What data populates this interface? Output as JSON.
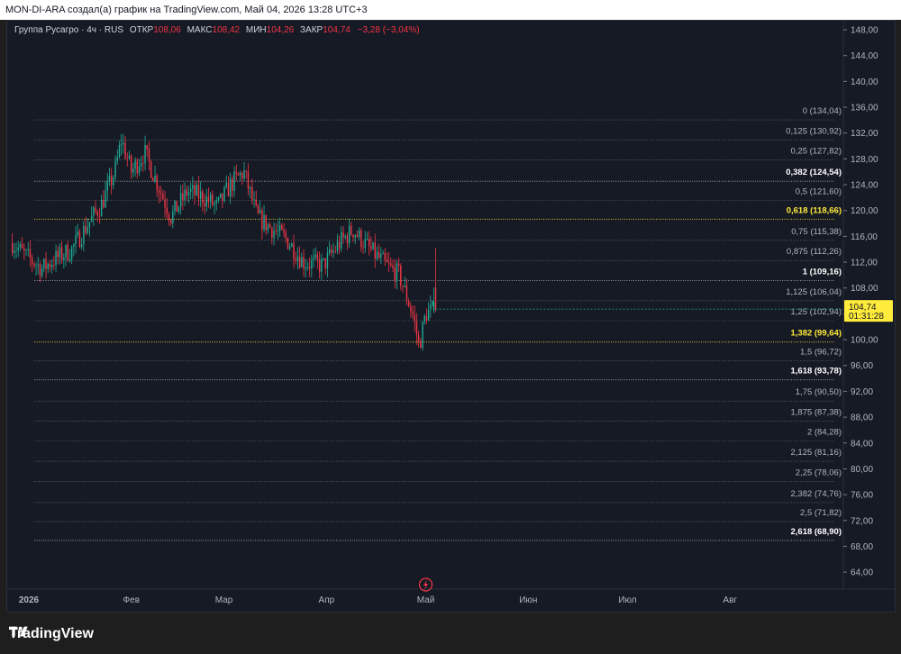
{
  "caption": "MON-DI-ARA создал(а) график на TradingView.com, Май 04, 2026 13:28 UTC+3",
  "legend": {
    "symbol": "Группа Русагро · 4ч · RUS",
    "open_label": "ОТКР",
    "open": "108,06",
    "high_label": "МАКС",
    "high": "108,42",
    "low_label": "МИН",
    "low": "104,26",
    "close_label": "ЗАКР",
    "close": "104,74",
    "change": "−3,28 (−3,04%)"
  },
  "price_badge": {
    "price": "104,74",
    "countdown": "01:31:28"
  },
  "brand": "TradingView",
  "icons": {
    "logo": "tradingview-logo-icon",
    "marker": "lightning-icon"
  },
  "colors": {
    "up": "#22ab94",
    "down": "#f23645",
    "accent": "#ffeb3b",
    "background": "#161a25",
    "fib_line": "#b2b5be"
  },
  "chart_data": {
    "type": "candlestick",
    "y_ticks": [
      "64,00",
      "68,00",
      "72,00",
      "76,00",
      "80,00",
      "84,00",
      "88,00",
      "92,00",
      "96,00",
      "100,00",
      "104,00",
      "108,00",
      "112,00",
      "116,00",
      "120,00",
      "124,00",
      "128,00",
      "132,00",
      "136,00",
      "140,00",
      "144,00",
      "148,00"
    ],
    "x_ticks": [
      "2026",
      "Фев",
      "Мар",
      "Апр",
      "Май",
      "Июн",
      "Июл",
      "Авг"
    ],
    "ylim": [
      62.2,
      149.4
    ],
    "fib_levels": [
      {
        "label": "0 (134,04)",
        "value": 134.04,
        "highlight": false,
        "bold": false
      },
      {
        "label": "0,125 (130,92)",
        "value": 130.92,
        "highlight": false,
        "bold": false
      },
      {
        "label": "0,25 (127,82)",
        "value": 127.82,
        "highlight": false,
        "bold": false
      },
      {
        "label": "0,382 (124,54)",
        "value": 124.54,
        "highlight": false,
        "bold": true
      },
      {
        "label": "0,5 (121,60)",
        "value": 121.6,
        "highlight": false,
        "bold": false
      },
      {
        "label": "0,618 (118,66)",
        "value": 118.66,
        "highlight": true,
        "bold": true
      },
      {
        "label": "0,75 (115,38)",
        "value": 115.38,
        "highlight": false,
        "bold": false
      },
      {
        "label": "0,875 (112,26)",
        "value": 112.26,
        "highlight": false,
        "bold": false
      },
      {
        "label": "1 (109,16)",
        "value": 109.16,
        "highlight": false,
        "bold": true
      },
      {
        "label": "1,125 (106,04)",
        "value": 106.04,
        "highlight": false,
        "bold": false
      },
      {
        "label": "1,25 (102,94)",
        "value": 102.94,
        "highlight": false,
        "bold": false
      },
      {
        "label": "1,382 (99,64)",
        "value": 99.64,
        "highlight": true,
        "bold": true
      },
      {
        "label": "1,5 (96,72)",
        "value": 96.72,
        "highlight": false,
        "bold": false
      },
      {
        "label": "1,618 (93,78)",
        "value": 93.78,
        "highlight": false,
        "bold": true
      },
      {
        "label": "1,75 (90,50)",
        "value": 90.5,
        "highlight": false,
        "bold": false
      },
      {
        "label": "1,875 (87,38)",
        "value": 87.38,
        "highlight": false,
        "bold": false
      },
      {
        "label": "2 (84,28)",
        "value": 84.28,
        "highlight": false,
        "bold": false
      },
      {
        "label": "2,125 (81,16)",
        "value": 81.16,
        "highlight": false,
        "bold": false
      },
      {
        "label": "2,25 (78,06)",
        "value": 78.06,
        "highlight": false,
        "bold": false
      },
      {
        "label": "2,382 (74,76)",
        "value": 74.76,
        "highlight": false,
        "bold": false
      },
      {
        "label": "2,5 (71,82)",
        "value": 71.82,
        "highlight": false,
        "bold": false
      },
      {
        "label": "2,618 (68,90)",
        "value": 68.9,
        "highlight": false,
        "bold": true
      }
    ],
    "price_trend": [
      {
        "date": "2025-12-27",
        "price": 115
      },
      {
        "date": "2025-12-31",
        "price": 113
      },
      {
        "date": "2026-01-05",
        "price": 111
      },
      {
        "date": "2026-01-09",
        "price": 112.5
      },
      {
        "date": "2026-01-14",
        "price": 114
      },
      {
        "date": "2026-01-19",
        "price": 118
      },
      {
        "date": "2026-01-23",
        "price": 121
      },
      {
        "date": "2026-01-27",
        "price": 126
      },
      {
        "date": "2026-01-29",
        "price": 131
      },
      {
        "date": "2026-02-01",
        "price": 126
      },
      {
        "date": "2026-02-05",
        "price": 129
      },
      {
        "date": "2026-02-09",
        "price": 124
      },
      {
        "date": "2026-02-13",
        "price": 119
      },
      {
        "date": "2026-02-18",
        "price": 123
      },
      {
        "date": "2026-02-23",
        "price": 122
      },
      {
        "date": "2026-02-27",
        "price": 120.5
      },
      {
        "date": "2026-03-03",
        "price": 124
      },
      {
        "date": "2026-03-07",
        "price": 126
      },
      {
        "date": "2026-03-11",
        "price": 119
      },
      {
        "date": "2026-03-16",
        "price": 117
      },
      {
        "date": "2026-03-20",
        "price": 115.5
      },
      {
        "date": "2026-03-25",
        "price": 112
      },
      {
        "date": "2026-03-31",
        "price": 111.5
      },
      {
        "date": "2026-04-05",
        "price": 115
      },
      {
        "date": "2026-04-09",
        "price": 117
      },
      {
        "date": "2026-04-14",
        "price": 114
      },
      {
        "date": "2026-04-19",
        "price": 111.5
      },
      {
        "date": "2026-04-23",
        "price": 110
      },
      {
        "date": "2026-04-27",
        "price": 104
      },
      {
        "date": "2026-04-29",
        "price": 99
      },
      {
        "date": "2026-05-01",
        "price": 104
      },
      {
        "date": "2026-05-04",
        "price": 104.74
      }
    ]
  }
}
